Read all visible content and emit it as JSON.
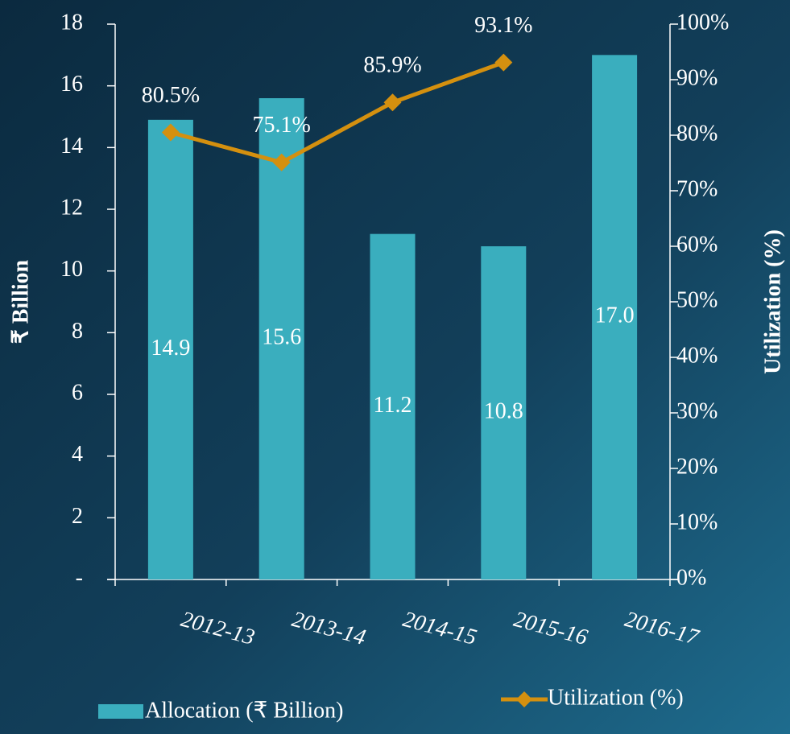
{
  "chart_data": {
    "type": "bar",
    "categories": [
      "2012-13",
      "2013-14",
      "2014-15",
      "2015-16",
      "2016-17"
    ],
    "series": [
      {
        "name": "Allocation (₹ Billion)",
        "type": "bar",
        "color": "#3aaebe",
        "axis": "y",
        "values": [
          14.9,
          15.6,
          11.2,
          10.8,
          17.0
        ],
        "value_labels": [
          "14.9",
          "15.6",
          "11.2",
          "10.8",
          "17.0"
        ]
      },
      {
        "name": "Utilization (%)",
        "type": "line",
        "color": "#d4900f",
        "axis": "y2",
        "values": [
          80.5,
          75.1,
          85.9,
          93.1,
          null
        ],
        "value_labels": [
          "80.5%",
          "75.1%",
          "85.9%",
          "93.1%",
          null
        ]
      }
    ],
    "ylabel": "₹ Billion",
    "y2label": "Utilization (%)",
    "ylim": [
      0,
      18
    ],
    "yticks": [
      {
        "value": 0,
        "label": "-"
      },
      2,
      4,
      6,
      8,
      10,
      12,
      14,
      16,
      18
    ],
    "y2lim": [
      0,
      100
    ],
    "y2ticks": [
      {
        "value": 0,
        "label": "0%"
      },
      {
        "value": 10,
        "label": "10%"
      },
      {
        "value": 20,
        "label": "20%"
      },
      {
        "value": 30,
        "label": "30%"
      },
      {
        "value": 40,
        "label": "40%"
      },
      {
        "value": 50,
        "label": "50%"
      },
      {
        "value": 60,
        "label": "60%"
      },
      {
        "value": 70,
        "label": "70%"
      },
      {
        "value": 80,
        "label": "80%"
      },
      {
        "value": 90,
        "label": "90%"
      },
      {
        "value": 100,
        "label": "100%"
      }
    ],
    "legend": "bottom"
  }
}
